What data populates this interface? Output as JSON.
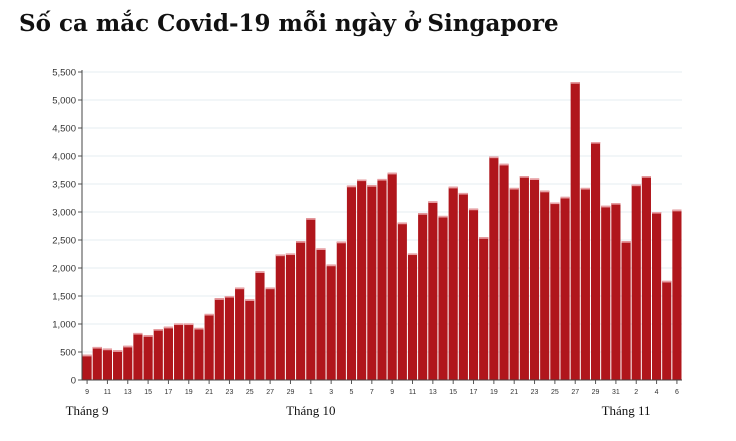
{
  "chart_data": {
    "type": "bar",
    "title": "Số ca mắc Covid-19 mỗi ngày ở Singapore",
    "xlabel": "",
    "ylabel": "",
    "ylim": [
      0,
      5500
    ],
    "yticks": [
      "0",
      "500",
      "1,000",
      "1,500",
      "2,000",
      "2,500",
      "3,000",
      "3,500",
      "4,000",
      "4,500",
      "5,000",
      "5,500"
    ],
    "grid": true,
    "bar_color": "#b0161c",
    "categories": [
      "9",
      "10",
      "11",
      "12",
      "13",
      "14",
      "15",
      "16",
      "17",
      "18",
      "19",
      "20",
      "21",
      "22",
      "23",
      "24",
      "25",
      "26",
      "27",
      "28",
      "29",
      "30",
      "1",
      "2",
      "3",
      "4",
      "5",
      "6",
      "7",
      "8",
      "9",
      "10",
      "11",
      "12",
      "13",
      "14",
      "15",
      "16",
      "17",
      "18",
      "19",
      "20",
      "21",
      "22",
      "23",
      "24",
      "25",
      "26",
      "27",
      "28",
      "29",
      "30",
      "31",
      "1",
      "2",
      "3",
      "4",
      "5",
      "6"
    ],
    "tick_labels": [
      "9",
      "11",
      "13",
      "15",
      "17",
      "19",
      "21",
      "23",
      "25",
      "27",
      "29",
      "1",
      "3",
      "5",
      "7",
      "9",
      "11",
      "13",
      "15",
      "17",
      "19",
      "21",
      "23",
      "25",
      "27",
      "29",
      "31",
      "2",
      "4",
      "6"
    ],
    "month_labels": [
      {
        "label": "Tháng 9",
        "at": "9"
      },
      {
        "label": "Tháng 10",
        "at": "1"
      },
      {
        "label": "Tháng 11",
        "at": "1"
      }
    ],
    "values": [
      450,
      590,
      560,
      530,
      610,
      840,
      800,
      910,
      950,
      1010,
      1010,
      930,
      1180,
      1460,
      1500,
      1650,
      1440,
      1940,
      1650,
      2240,
      2260,
      2480,
      2890,
      2350,
      2060,
      2470,
      3470,
      3580,
      3480,
      3590,
      3700,
      2810,
      2260,
      2980,
      3190,
      2930,
      3450,
      3340,
      3060,
      2550,
      3990,
      3860,
      3430,
      3640,
      3600,
      3380,
      3170,
      3270,
      5320,
      3430,
      4250,
      3110,
      3160,
      2480,
      3490,
      3640,
      3000,
      1770,
      3040
    ]
  }
}
